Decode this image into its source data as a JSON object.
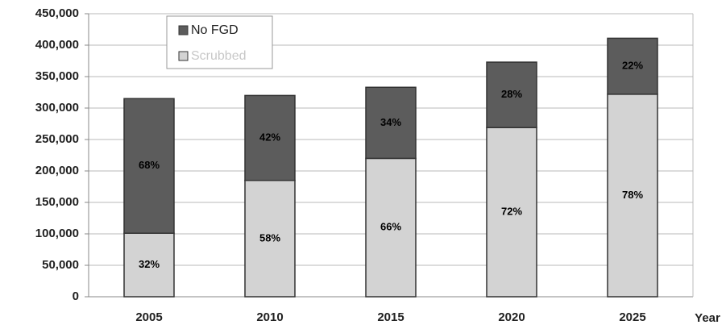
{
  "chart_data": {
    "type": "stacked_bar",
    "categories": [
      "2005",
      "2010",
      "2015",
      "2020",
      "2025"
    ],
    "x_label": "Year",
    "series": [
      {
        "name": "No FGD",
        "color": "#5c5c5c",
        "values": [
          214000,
          135000,
          113000,
          104000,
          89000
        ],
        "share_labels": [
          "68%",
          "42%",
          "34%",
          "28%",
          "22%"
        ]
      },
      {
        "name": "Scrubbed",
        "color": "#d3d3d3",
        "values": [
          101000,
          185000,
          220000,
          269000,
          322000
        ],
        "share_labels": [
          "32%",
          "58%",
          "66%",
          "72%",
          "78%"
        ]
      }
    ],
    "ylim": [
      0,
      450000
    ],
    "yticks": [
      {
        "value": 0,
        "label": "0"
      },
      {
        "value": 50000,
        "label": "50,000"
      },
      {
        "value": 100000,
        "label": "100,000"
      },
      {
        "value": 150000,
        "label": "150,000"
      },
      {
        "value": 200000,
        "label": "200,000"
      },
      {
        "value": 250000,
        "label": "250,000"
      },
      {
        "value": 300000,
        "label": "300,000"
      },
      {
        "value": 350000,
        "label": "350,000"
      },
      {
        "value": 400000,
        "label": "400,000"
      },
      {
        "value": 450000,
        "label": "450,000"
      }
    ],
    "grid": true,
    "legend": "top-left"
  }
}
